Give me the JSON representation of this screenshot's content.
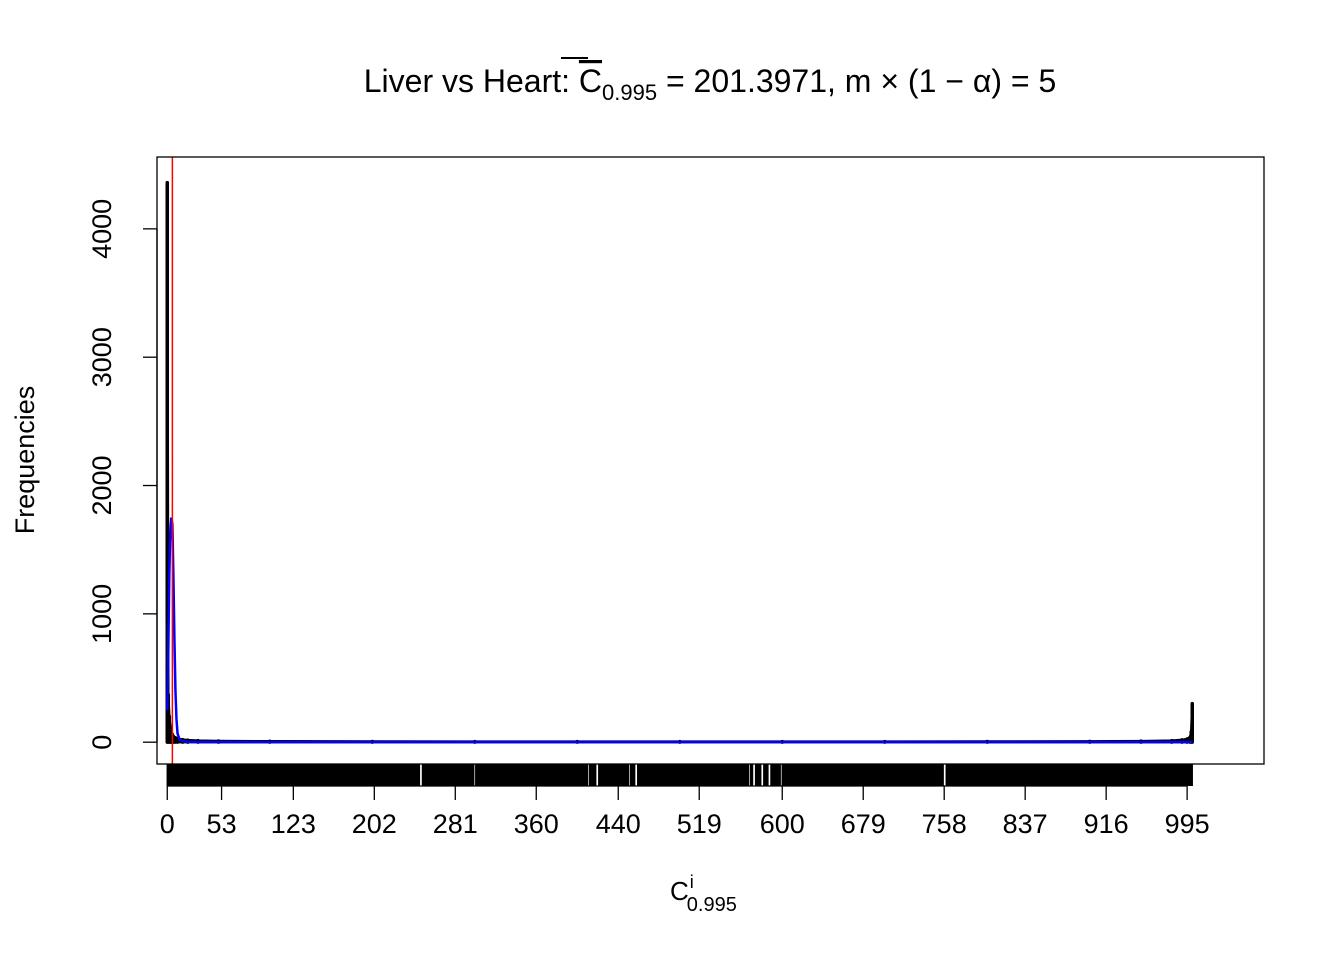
{
  "chart_data": {
    "type": "line",
    "title": {
      "prefix": "Liver vs Heart: ",
      "symbol": "C",
      "symbol_subscript": "0.995",
      "value_text": " = 201.3971, m × (1 − α) = 5"
    },
    "xlabel": {
      "symbol": "C",
      "superscript": "i",
      "subscript": "0.995"
    },
    "ylabel": "Frequencies",
    "xlim": [
      -10,
      1070
    ],
    "ylim": [
      -170,
      4560
    ],
    "x_ticks": [
      0,
      53,
      123,
      202,
      281,
      360,
      440,
      519,
      600,
      679,
      758,
      837,
      916,
      995
    ],
    "y_ticks": [
      0,
      1000,
      2000,
      3000,
      4000
    ],
    "grid": false,
    "legend": "none",
    "series": [
      {
        "style": "histogram-spikes",
        "color": "#000000",
        "x": [
          0,
          1,
          2,
          3,
          4,
          5,
          6,
          8,
          10,
          15,
          20,
          30,
          50,
          100,
          200,
          300,
          400,
          500,
          600,
          700,
          800,
          900,
          950,
          980,
          990,
          995,
          998,
          999,
          1000
        ],
        "y": [
          4360,
          370,
          200,
          120,
          80,
          60,
          45,
          35,
          28,
          20,
          16,
          12,
          9,
          7,
          5,
          4,
          4,
          4,
          4,
          4,
          5,
          6,
          8,
          12,
          18,
          25,
          40,
          80,
          300
        ]
      },
      {
        "style": "curve",
        "color": "#0000ff",
        "x": [
          0,
          1,
          2,
          3,
          4,
          5,
          6,
          7,
          8,
          9,
          10,
          12,
          15,
          20,
          30,
          1000
        ],
        "y": [
          250,
          700,
          1300,
          1650,
          1750,
          1700,
          1300,
          800,
          400,
          180,
          70,
          20,
          8,
          3,
          0,
          0
        ]
      }
    ],
    "vline": {
      "x": 5,
      "color": "#ff0000"
    },
    "rug": {
      "color": "#000000",
      "ranges": [
        [
          0,
          246
        ],
        [
          249,
          299
        ],
        [
          301,
          410
        ],
        [
          412,
          418
        ],
        [
          421,
          450
        ],
        [
          452,
          456
        ],
        [
          459,
          567
        ],
        [
          569,
          571
        ],
        [
          574,
          579
        ],
        [
          582,
          586
        ],
        [
          589,
          598
        ],
        [
          600,
          757
        ],
        [
          760,
          1000
        ]
      ]
    }
  }
}
